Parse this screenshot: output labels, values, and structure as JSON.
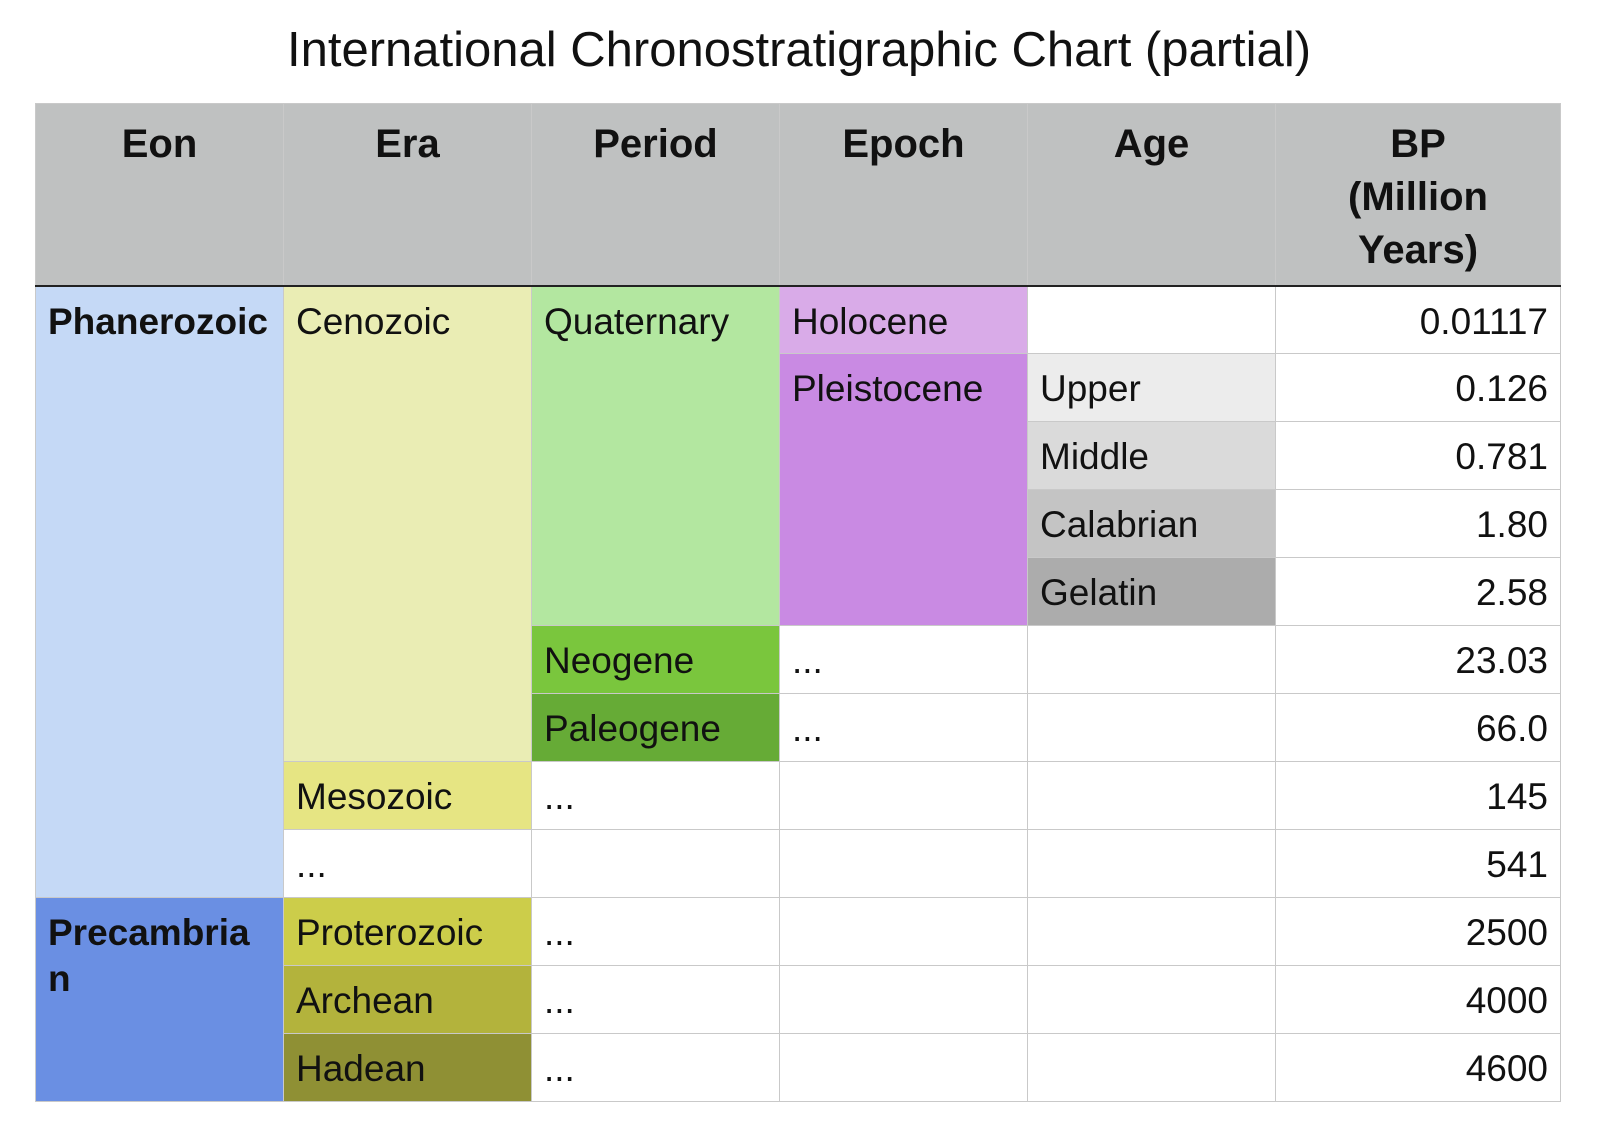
{
  "title": "International Chronostratigraphic Chart (partial)",
  "headers": {
    "eon": "Eon",
    "era": "Era",
    "period": "Period",
    "epoch": "Epoch",
    "age": "Age",
    "bp_line1": "BP",
    "bp_line2": "(Million",
    "bp_line3": "Years)"
  },
  "eons": {
    "phanerozoic": "Phanerozoic",
    "precambrian": "Precambrian"
  },
  "eras": {
    "cenozoic": "Cenozoic",
    "mesozoic": "Mesozoic",
    "ellipsis": "...",
    "proterozoic": "Proterozoic",
    "archean": "Archean",
    "hadean": "Hadean"
  },
  "periods": {
    "quaternary": "Quaternary",
    "neogene": "Neogene",
    "paleogene": "Paleogene",
    "ellipsis": "..."
  },
  "epochs": {
    "holocene": "Holocene",
    "pleistocene": "Pleistocene",
    "ellipsis": "..."
  },
  "ages": {
    "upper": "Upper",
    "middle": "Middle",
    "calabrian": "Calabrian",
    "gelatin": "Gelatin"
  },
  "bp": [
    "0.01117",
    "0.126",
    "0.781",
    "1.80",
    "2.58",
    "23.03",
    "66.0",
    "145",
    "541",
    "2500",
    "4000",
    "4600"
  ],
  "colors": {
    "header": "#bfc1c1",
    "phanerozoic": "#c5d9f6",
    "precambrian": "#6a8fe3",
    "cenozoic": "#eaedb4",
    "mesozoic": "#e6e583",
    "proterozoic": "#cccd4a",
    "archean": "#b3b33c",
    "hadean": "#8f9034",
    "quaternary": "#b3e7a0",
    "neogene": "#7ac63d",
    "paleogene": "#66ab36",
    "holocene": "#d9abe8",
    "pleistocene": "#c98ae3",
    "upper": "#ececec",
    "middle": "#dadada",
    "calabrian": "#c4c4c4",
    "gelatin": "#acacac"
  }
}
